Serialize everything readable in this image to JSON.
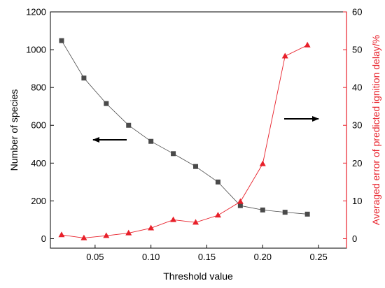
{
  "chart_data": {
    "type": "line",
    "title": "",
    "xlabel": "Threshold value",
    "ylabel": "Number of species",
    "y2label": "Averaged error of predicted ignition delay/%",
    "xlim": [
      0.01,
      0.275
    ],
    "ylim": [
      -50,
      1200
    ],
    "y2lim": [
      -2.5,
      60
    ],
    "x_ticks": [
      "0.05",
      "0.10",
      "0.15",
      "0.20",
      "0.25"
    ],
    "y_ticks": [
      "0",
      "200",
      "400",
      "600",
      "800",
      "1000",
      "1200"
    ],
    "y2_ticks": [
      "0",
      "10",
      "20",
      "30",
      "40",
      "50",
      "60"
    ],
    "grid": false,
    "legend": "none",
    "series": [
      {
        "axis": "left",
        "marker": "square",
        "color": "#4a4a4a",
        "x": [
          0.02,
          0.04,
          0.06,
          0.08,
          0.1,
          0.12,
          0.14,
          0.16,
          0.18,
          0.2,
          0.22,
          0.24
        ],
        "values": [
          1048,
          850,
          715,
          600,
          515,
          450,
          382,
          300,
          175,
          152,
          140,
          130
        ]
      },
      {
        "axis": "right",
        "marker": "triangle",
        "color": "#e8202a",
        "x": [
          0.02,
          0.04,
          0.06,
          0.08,
          0.1,
          0.12,
          0.14,
          0.16,
          0.18,
          0.2,
          0.22,
          0.24
        ],
        "values": [
          1.0,
          0.2,
          0.8,
          1.5,
          2.8,
          5.0,
          4.3,
          6.2,
          9.8,
          19.8,
          48.3,
          51.2
        ]
      }
    ],
    "annotations": [
      {
        "kind": "arrow",
        "direction": "left",
        "meaning": "series 1 reads on left axis"
      },
      {
        "kind": "arrow",
        "direction": "right",
        "meaning": "series 2 reads on right axis"
      }
    ],
    "colors": {
      "axis_left": "#000000",
      "axis_right": "#e8202a"
    }
  }
}
